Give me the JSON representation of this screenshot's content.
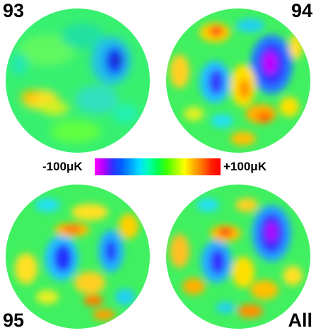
{
  "panels": [
    {
      "label": "93"
    },
    {
      "label": "94"
    },
    {
      "label": "95"
    },
    {
      "label": "All"
    }
  ],
  "colorbar": {
    "min_label": "-100μK",
    "max_label": "+100μK",
    "colors": [
      "#ff00ff",
      "#b000ff",
      "#3030ff",
      "#0060ff",
      "#00a0ff",
      "#00e0ff",
      "#00ffb0",
      "#00ff50",
      "#40ff00",
      "#a0ff00",
      "#ffff00",
      "#ffb000",
      "#ff7000",
      "#ff2000",
      "#ff0000"
    ]
  }
}
